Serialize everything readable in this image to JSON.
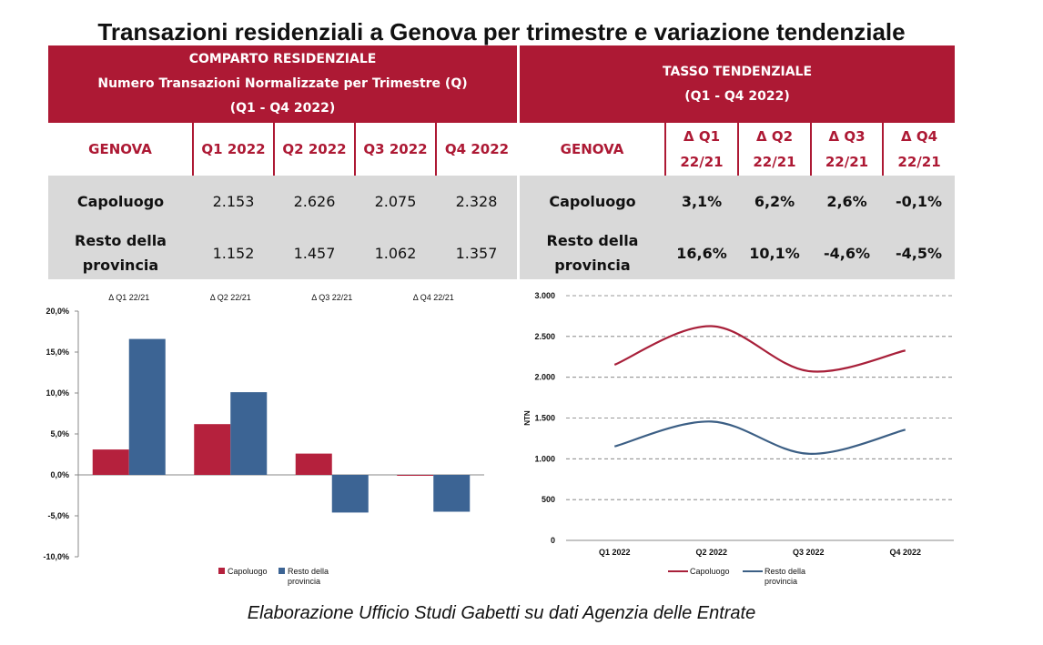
{
  "page": {
    "title": "Transazioni residenziali a Genova per trimestre e variazione tendenziale",
    "caption": "Elaborazione Ufficio Studi Gabetti su dati Agenzia delle Entrate"
  },
  "table_left": {
    "header": [
      "COMPARTO RESIDENZIALE",
      "Numero Transazioni Normalizzate per Trimestre (Q)",
      "(Q1 - Q4 2022)"
    ],
    "columns": [
      "GENOVA",
      "Q1 2022",
      "Q2 2022",
      "Q3 2022",
      "Q4 2022"
    ],
    "rows": [
      {
        "label": "Capoluogo",
        "values": [
          "2.153",
          "2.626",
          "2.075",
          "2.328"
        ]
      },
      {
        "label_line1": "Resto della",
        "label_line2": "provincia",
        "values": [
          "1.152",
          "1.457",
          "1.062",
          "1.357"
        ]
      }
    ]
  },
  "table_right": {
    "header": [
      "TASSO TENDENZIALE",
      "(Q1 - Q4 2022)"
    ],
    "columns": [
      {
        "l1": "GENOVA",
        "l2": ""
      },
      {
        "l1": "Δ Q1",
        "l2": "22/21"
      },
      {
        "l1": "Δ Q2",
        "l2": "22/21"
      },
      {
        "l1": "Δ Q3",
        "l2": "22/21"
      },
      {
        "l1": "Δ Q4",
        "l2": "22/21"
      }
    ],
    "rows": [
      {
        "label": "Capoluogo",
        "values": [
          "3,1%",
          "6,2%",
          "2,6%",
          "-0,1%"
        ]
      },
      {
        "label_line1": "Resto della",
        "label_line2": "provincia",
        "values": [
          "16,6%",
          "10,1%",
          "-4,6%",
          "-4,5%"
        ]
      }
    ]
  },
  "chart_data": [
    {
      "type": "bar",
      "categories": [
        "Δ Q1 22/21",
        "Δ Q2 22/21",
        "Δ Q3 22/21",
        "Δ Q4 22/21"
      ],
      "series": [
        {
          "name": "Capoluogo",
          "values": [
            3.1,
            6.2,
            2.6,
            -0.1
          ],
          "color": "#b5213d"
        },
        {
          "name": "Resto della provincia",
          "values": [
            16.6,
            10.1,
            -4.6,
            -4.5
          ],
          "color": "#3c6494"
        }
      ],
      "ylim": [
        -10,
        20
      ],
      "yticks": [
        -10,
        -5,
        0,
        5,
        10,
        15,
        20
      ],
      "ytick_labels": [
        "-10,0%",
        "-5,0%",
        "0,0%",
        "5,0%",
        "10,0%",
        "15,0%",
        "20,0%"
      ],
      "legend": "bottom",
      "category_labels_position": "top"
    },
    {
      "type": "line",
      "categories": [
        "Q1 2022",
        "Q2 2022",
        "Q3 2022",
        "Q4 2022"
      ],
      "series": [
        {
          "name": "Capoluogo",
          "values": [
            2153,
            2626,
            2075,
            2328
          ],
          "color": "#a8203a"
        },
        {
          "name": "Resto della provincia",
          "values": [
            1152,
            1457,
            1062,
            1357
          ],
          "color": "#3c5f85"
        }
      ],
      "ylabel": "NTN",
      "ylim": [
        0,
        3000
      ],
      "yticks": [
        0,
        500,
        1000,
        1500,
        2000,
        2500,
        3000
      ],
      "ytick_labels": [
        "0",
        "500",
        "1.000",
        "1.500",
        "2.000",
        "2.500",
        "3.000"
      ],
      "grid": "dashed horizontal",
      "smooth": true,
      "legend": "bottom"
    }
  ]
}
